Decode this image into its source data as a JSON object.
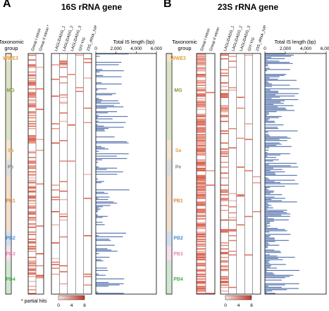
{
  "panels": [
    {
      "letter": "A",
      "title": "16S rRNA gene",
      "group_header": "Taxonomic group",
      "groups": [
        {
          "name": "WWE3",
          "color": "#e0a13a"
        },
        {
          "name": "MG",
          "color": "#7a9a2e"
        },
        {
          "name": "Sa",
          "color": "#e8a04c"
        },
        {
          "name": "Pe",
          "color": "#8a8a8a"
        },
        {
          "name": "PB1",
          "color": "#e0883a"
        },
        {
          "name": "PB2",
          "color": "#4a8fd4"
        },
        {
          "name": "PB3",
          "color": "#e888b8"
        },
        {
          "name": "PB4",
          "color": "#4ab04a"
        }
      ],
      "columns_a": [
        "Group I intron",
        "Group II intron *"
      ],
      "columns_b": [
        "LAGLIDADG_1",
        "LAGLIDADG_2",
        "LAGLIDADG_3",
        "GIY-YIG",
        "23S_rRNA_IVP"
      ],
      "length_axis_label": "Total IS length (bp)",
      "length_ticks": [
        "0",
        "2,000",
        "4,000",
        "6,000"
      ]
    },
    {
      "letter": "B",
      "title": "23S rRNA gene",
      "group_header": "Taxonomic group",
      "groups": [
        {
          "name": "WWE3",
          "color": "#e0a13a"
        },
        {
          "name": "MG",
          "color": "#7a9a2e"
        },
        {
          "name": "Sa",
          "color": "#e8a04c"
        },
        {
          "name": "Pe",
          "color": "#8a8a8a"
        },
        {
          "name": "PB1",
          "color": "#e0883a"
        },
        {
          "name": "PB2",
          "color": "#4a8fd4"
        },
        {
          "name": "PB3",
          "color": "#e888b8"
        },
        {
          "name": "PB4",
          "color": "#4ab04a"
        }
      ],
      "columns_a": [
        "Group I intron",
        "Group II intron"
      ],
      "columns_b": [
        "LAGLIDADG_1",
        "LAGLIDADG_2",
        "LAGLIDADG_3",
        "GIY-YIG",
        "23S_rRNA_IVP"
      ],
      "length_axis_label": "Total IS length (bp)",
      "length_ticks": [
        "0",
        "2,000",
        "4,000",
        "6,000"
      ]
    }
  ],
  "footnote": "* partial hits",
  "colorbar": {
    "ticks": [
      "0",
      "4",
      "8"
    ],
    "low_color": "#fbe3dc",
    "high_color": "#c0392b"
  },
  "colors": {
    "heat": "#d9462f",
    "bar": "#5a78b0",
    "axis": "#000000"
  },
  "chart_data": {
    "type": "heatmap",
    "rows_per_panel": 200,
    "x_max_bp": 6000,
    "x_ticks": [
      0,
      2000,
      4000,
      6000
    ],
    "color_range": [
      0,
      8
    ],
    "note": ""
  }
}
